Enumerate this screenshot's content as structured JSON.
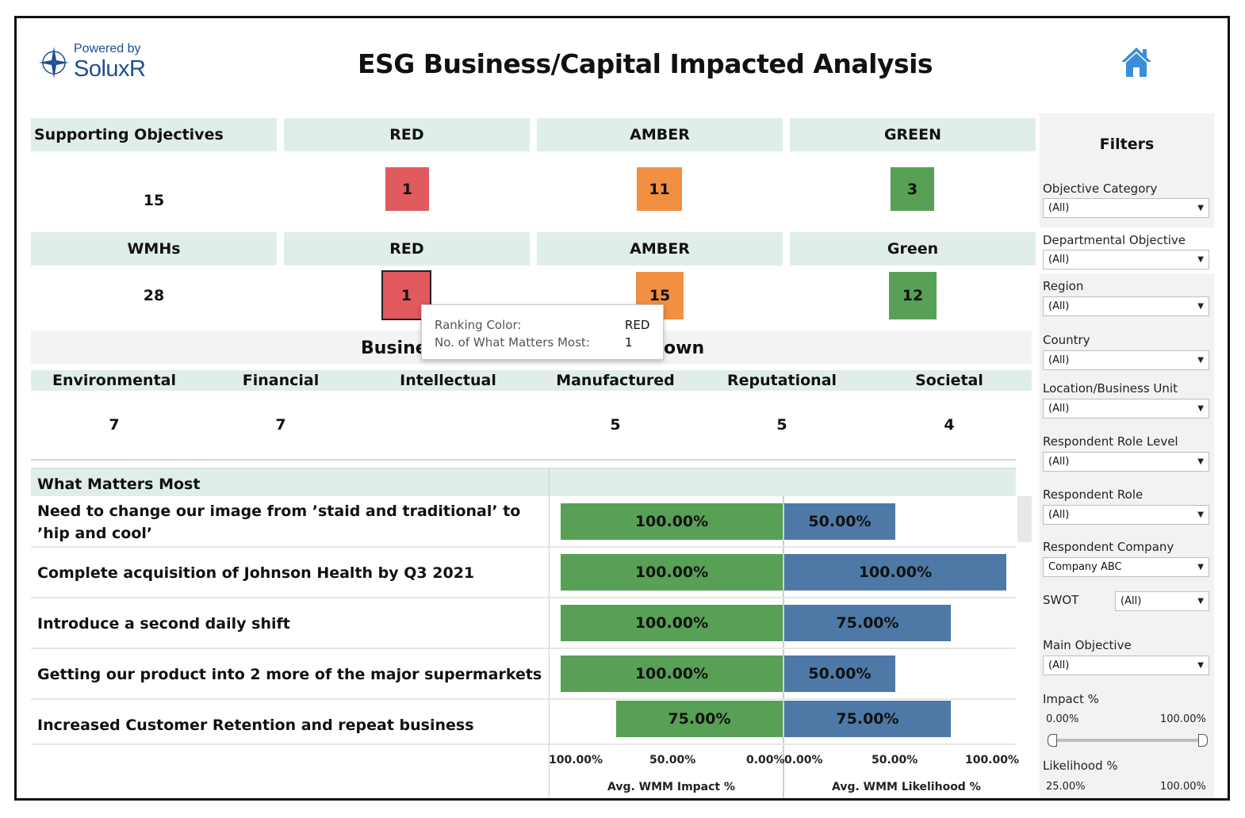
{
  "header": {
    "logo_powered": "Powered by",
    "logo_name": "SoluxR",
    "title": "ESG Business/Capital Impacted Analysis"
  },
  "objectives": {
    "label": "Supporting Objectives",
    "total": "15",
    "red_label": "RED",
    "amber_label": "AMBER",
    "green_label": "GREEN",
    "red": "1",
    "amber": "11",
    "green": "3"
  },
  "wmhs": {
    "label": "WMHs",
    "total": "28",
    "red_label": "RED",
    "amber_label": "AMBER",
    "green_label": "Green",
    "red": "1",
    "amber": "15",
    "green": "12"
  },
  "tooltip": {
    "k1": "Ranking Color:",
    "v1": "RED",
    "k2": "No. of What Matters Most:",
    "v2": "1"
  },
  "capital": {
    "title_left": "Busine",
    "title_right": "own",
    "categories": [
      "Environmental",
      "Financial",
      "Intellectual",
      "Manufactured",
      "Reputational",
      "Societal"
    ],
    "values": [
      "7",
      "7",
      "",
      "5",
      "5",
      "4"
    ]
  },
  "wmm": {
    "header": "What Matters Most",
    "rows": [
      {
        "text": "Need to change our image from ’staid and traditional’ to ’hip and cool’",
        "impact": "100.00%",
        "likelihood": "50.00%"
      },
      {
        "text": "Complete acquisition of Johnson Health by Q3 2021",
        "impact": "100.00%",
        "likelihood": "100.00%"
      },
      {
        "text": "Introduce a second daily shift",
        "impact": "100.00%",
        "likelihood": "75.00%"
      },
      {
        "text": "Getting our product into 2 more of the major supermarkets",
        "impact": "100.00%",
        "likelihood": "50.00%"
      },
      {
        "text": "Increased Customer Retention and repeat business",
        "impact": "75.00%",
        "likelihood": "75.00%"
      }
    ],
    "impact_ticks": [
      "100.00%",
      "50.00%",
      "0.00%"
    ],
    "likelihood_ticks": [
      "0.00%",
      "50.00%",
      "100.00%"
    ],
    "impact_axis_title": "Avg. WMM Impact %",
    "likelihood_axis_title": "Avg. WMM Likelihood %"
  },
  "chart_data": {
    "type": "bar",
    "categories": [
      "Need to change our image from ’staid and traditional’ to ’hip and cool’",
      "Complete acquisition of Johnson Health by Q3 2021",
      "Introduce a second daily shift",
      "Getting our product into 2 more of the major supermarkets",
      "Increased Customer Retention and repeat business"
    ],
    "series": [
      {
        "name": "Avg. WMM Impact %",
        "values": [
          100,
          100,
          100,
          100,
          75
        ],
        "color": "#57a055"
      },
      {
        "name": "Avg. WMM Likelihood %",
        "values": [
          50,
          100,
          75,
          50,
          75
        ],
        "color": "#4e79a7"
      }
    ],
    "xlim": [
      0,
      100
    ]
  },
  "filters": {
    "title": "Filters",
    "items": [
      {
        "label": "Objective Category",
        "value": "(All)"
      },
      {
        "label": "Departmental Objective",
        "value": "(All)"
      },
      {
        "label": "Region",
        "value": "(All)"
      },
      {
        "label": "Country",
        "value": "(All)"
      },
      {
        "label": "Location/Business Unit",
        "value": "(All)"
      },
      {
        "label": "Respondent Role Level",
        "value": "(All)"
      },
      {
        "label": "Respondent Role",
        "value": "(All)"
      },
      {
        "label": "Respondent Company",
        "value": "Company ABC"
      },
      {
        "label": "SWOT",
        "value": "(All)"
      },
      {
        "label": "Main Objective",
        "value": "(All)"
      }
    ],
    "impact": {
      "label": "Impact %",
      "min": "0.00%",
      "max": "100.00%"
    },
    "likelihood": {
      "label": "Likelihood %",
      "min": "25.00%",
      "max": "100.00%"
    }
  },
  "colors": {
    "red": "#e05a5e",
    "amber": "#f18f42",
    "green": "#57a055",
    "blue": "#4e79a7",
    "header_band": "#e0eeeb",
    "brand": "#1f4e91",
    "home": "#3a8fd8"
  }
}
